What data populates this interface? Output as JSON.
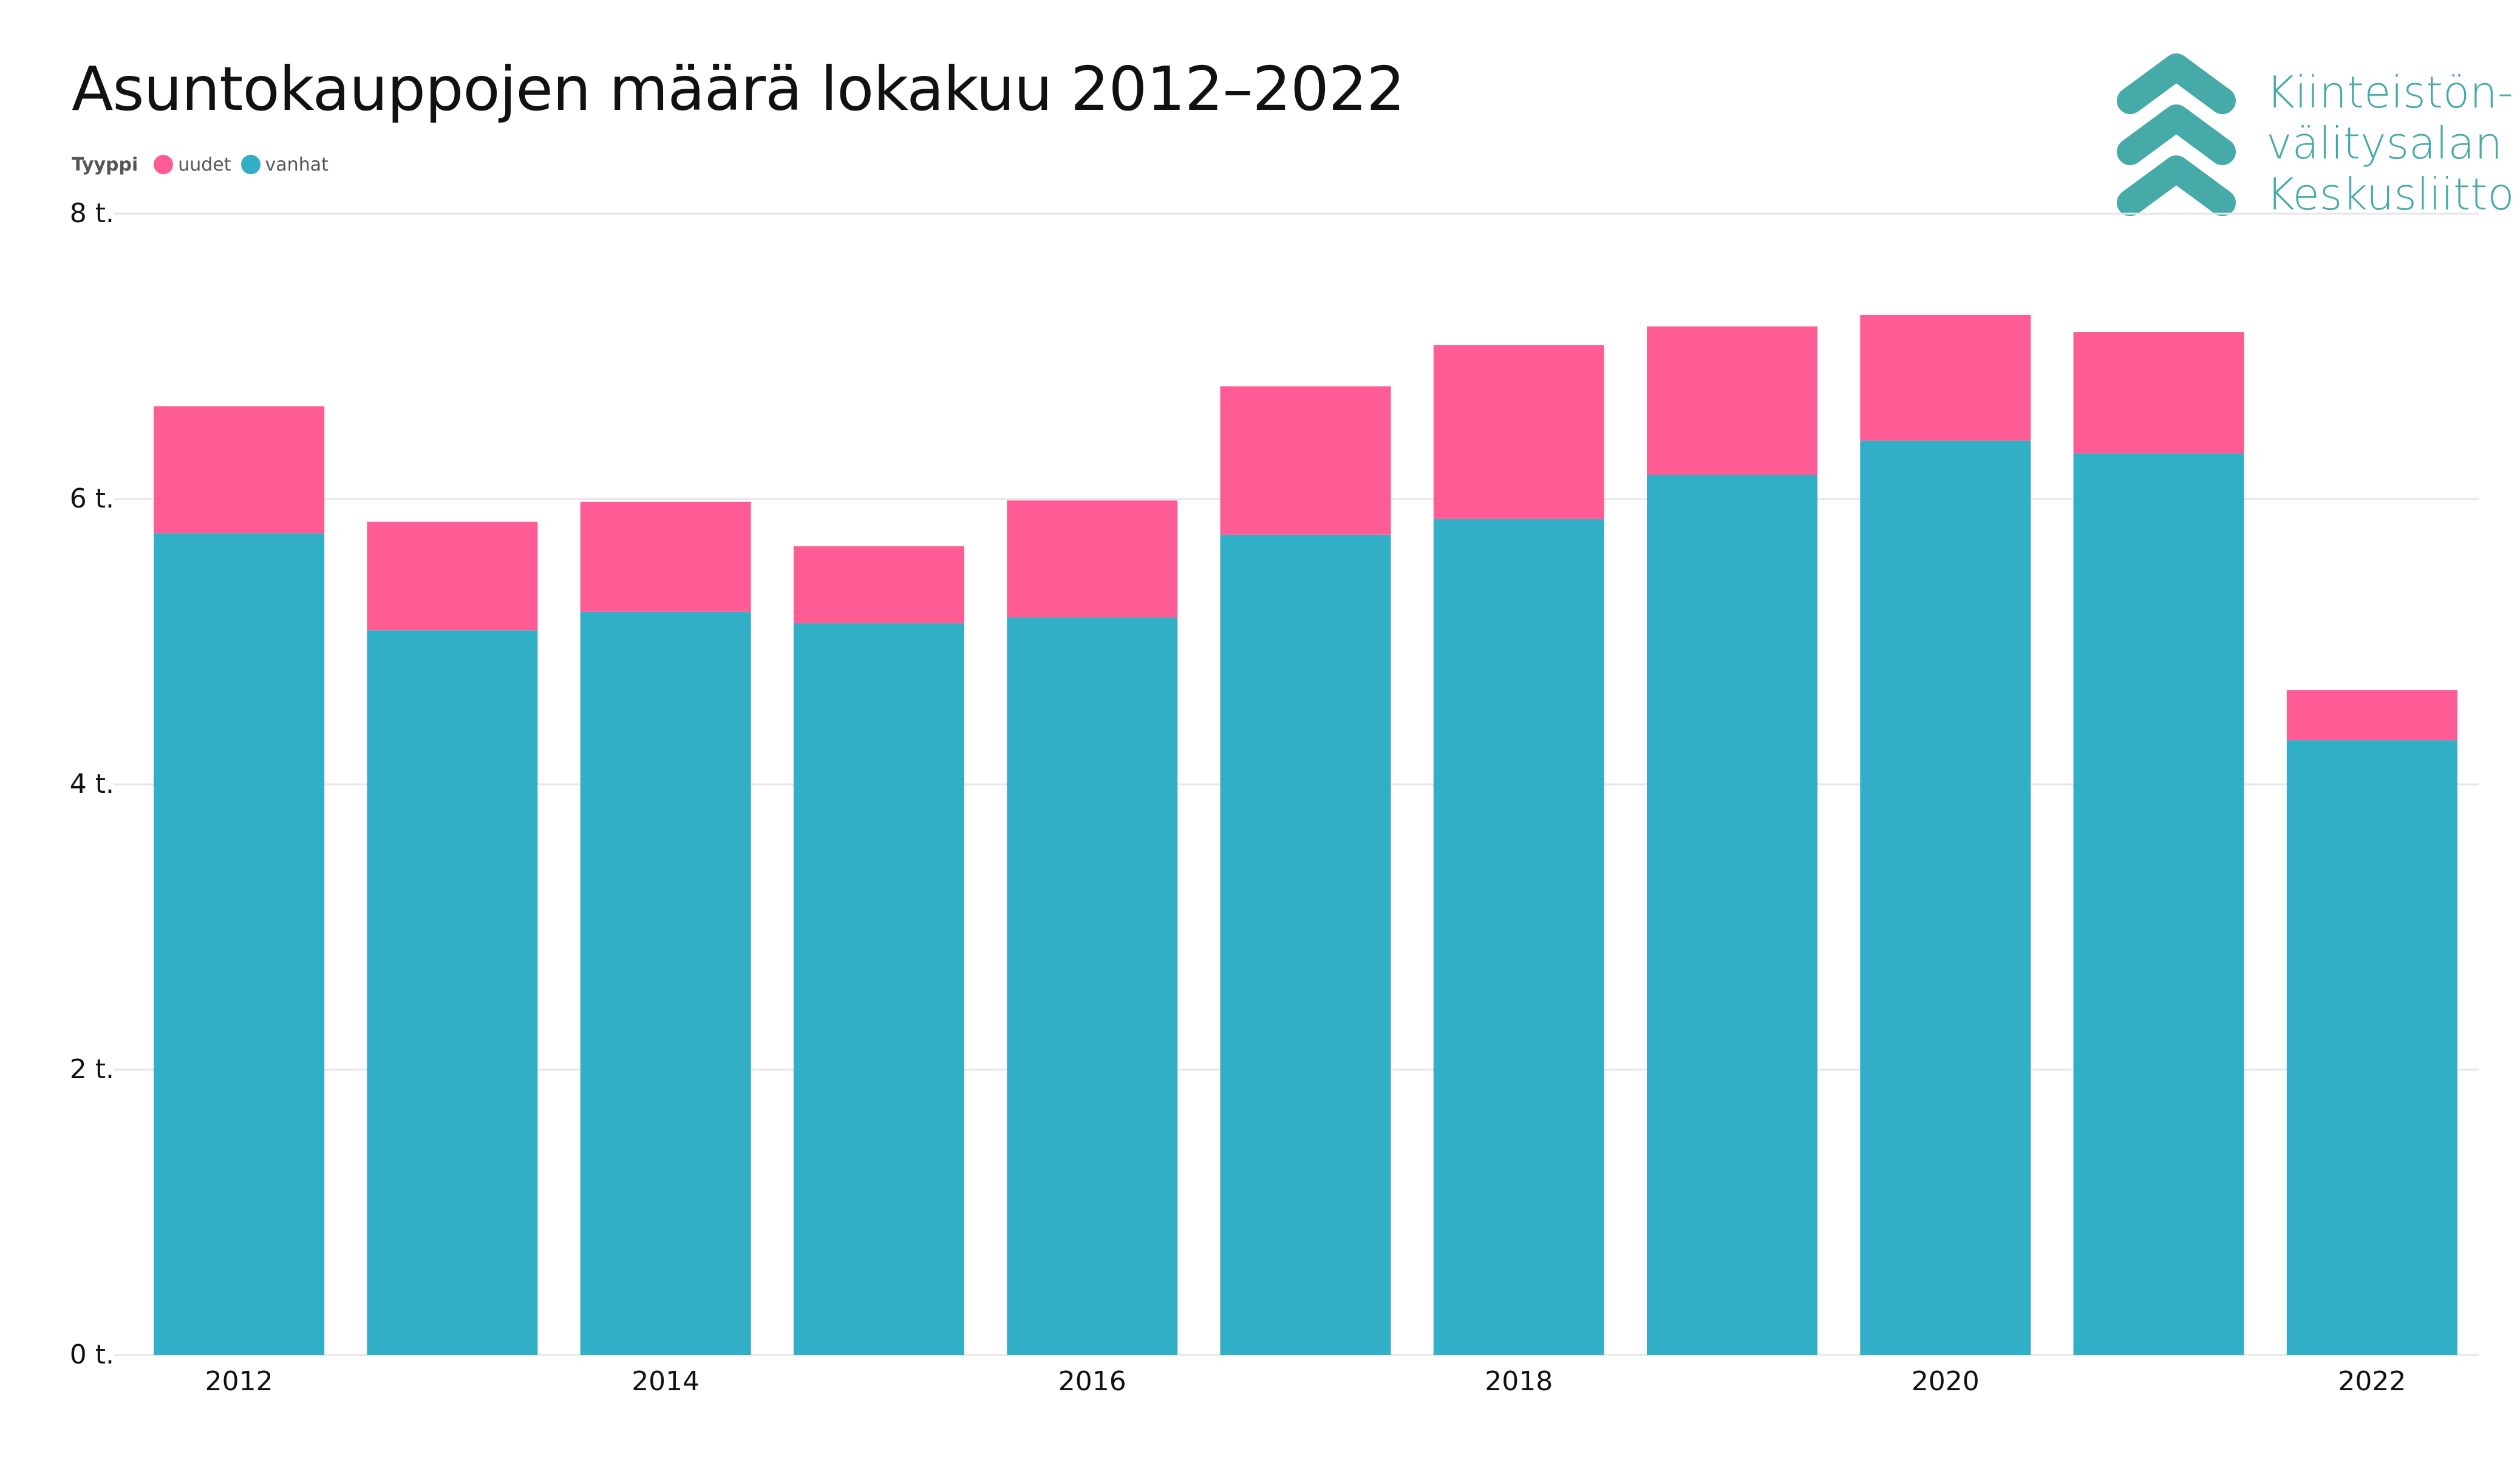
{
  "title": "Asuntokauppojen määrä lokakuu 2012–2022",
  "legend": {
    "title": "Tyyppi",
    "items": [
      {
        "label": "uudet",
        "color": "#ff5b94"
      },
      {
        "label": "vanhat",
        "color": "#31afc6"
      }
    ]
  },
  "logo": {
    "lines": [
      "Kiinteistön-",
      "välitysalan",
      "Keskusliitto"
    ],
    "color": "#45aaa8",
    "icon": "triple-chevron-up-icon"
  },
  "chart_data": {
    "type": "bar",
    "stacked": true,
    "x": [
      2012,
      2013,
      2014,
      2015,
      2016,
      2017,
      2018,
      2019,
      2020,
      2021,
      2022
    ],
    "x_tick_labels": [
      "2012",
      "2014",
      "2016",
      "2018",
      "2020",
      "2022"
    ],
    "y_tick_labels": [
      "0 t.",
      "2 t.",
      "4 t.",
      "6 t.",
      "8 t."
    ],
    "y_ticks": [
      0,
      2000,
      4000,
      6000,
      8000
    ],
    "ylim": [
      0,
      8000
    ],
    "grid": true,
    "legend_position": "top-left",
    "series": [
      {
        "name": "vanhat",
        "color": "#31afc6",
        "values": [
          5760,
          5080,
          5210,
          5130,
          5170,
          5750,
          5860,
          6170,
          6410,
          6320,
          4310
        ]
      },
      {
        "name": "uudet",
        "color": "#ff5b94",
        "values": [
          890,
          760,
          770,
          540,
          820,
          1040,
          1220,
          1040,
          880,
          850,
          350
        ]
      }
    ]
  }
}
